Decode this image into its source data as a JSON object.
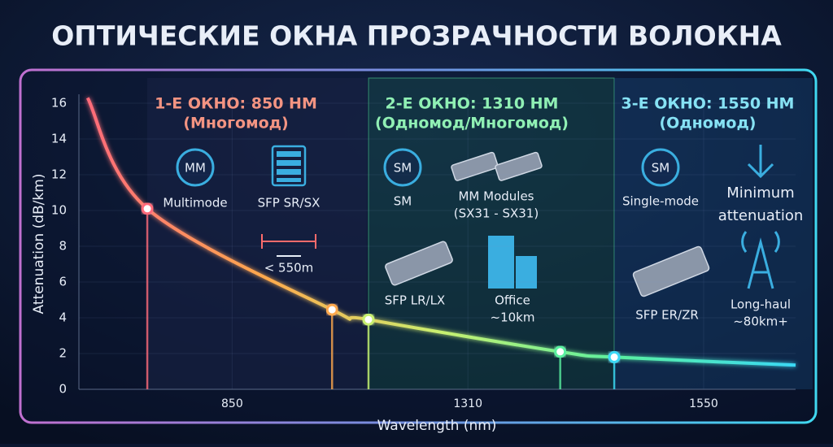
{
  "chart_data": {
    "type": "line",
    "title": "ОПТИЧЕСКИЕ ОКНА ПРОЗРАЧНОСТИ ВОЛОКНА",
    "x_label": "Wavelength (nm)",
    "y_label": "Attenuation (dB/km)",
    "xlim": [
      552,
      1644
    ],
    "xticks": [
      850,
      1310,
      1550
    ],
    "ylim": [
      0,
      16.5
    ],
    "yticks": [
      0,
      2,
      4,
      6,
      8,
      10,
      12,
      14,
      16
    ],
    "grid": true,
    "series": [
      {
        "x": [
          569,
          685,
          1045,
          1116,
          1404,
          1459,
          1644
        ],
        "values": [
          16.3,
          10.1,
          4.45,
          3.9,
          2.1,
          1.8,
          1.35
        ],
        "colors": [
          "#ff6b7a",
          "#ffa94d",
          "#c8f070",
          "#5af0a0",
          "#3ad8f5"
        ]
      }
    ]
  },
  "windows": [
    {
      "title": "1-Е ОКНО: 850 НМ",
      "mode": "(Многомод)",
      "badge": "MM",
      "items": [
        [
          "Multimode"
        ],
        [
          "SFP SR/SX"
        ],
        [
          "< 550m"
        ]
      ]
    },
    {
      "title": "2-Е ОКНО: 1310 НМ",
      "mode": "(Одномод/Многомод)",
      "badge": "SM",
      "items": [
        [
          "SM"
        ],
        [
          "MM Modules",
          "(SX31 - SX31)"
        ],
        [
          "SFP LR/LX"
        ],
        [
          "Office",
          "~10km"
        ]
      ]
    },
    {
      "title": "3-Е ОКНО: 1550 НМ",
      "mode": "(Одномод)",
      "badge": "SM",
      "items": [
        [
          "Single-mode"
        ],
        [
          "Minimum",
          "attenuation"
        ],
        [
          "SFP ER/ZR"
        ],
        [
          "Long-haul",
          "~80km+"
        ]
      ]
    }
  ]
}
